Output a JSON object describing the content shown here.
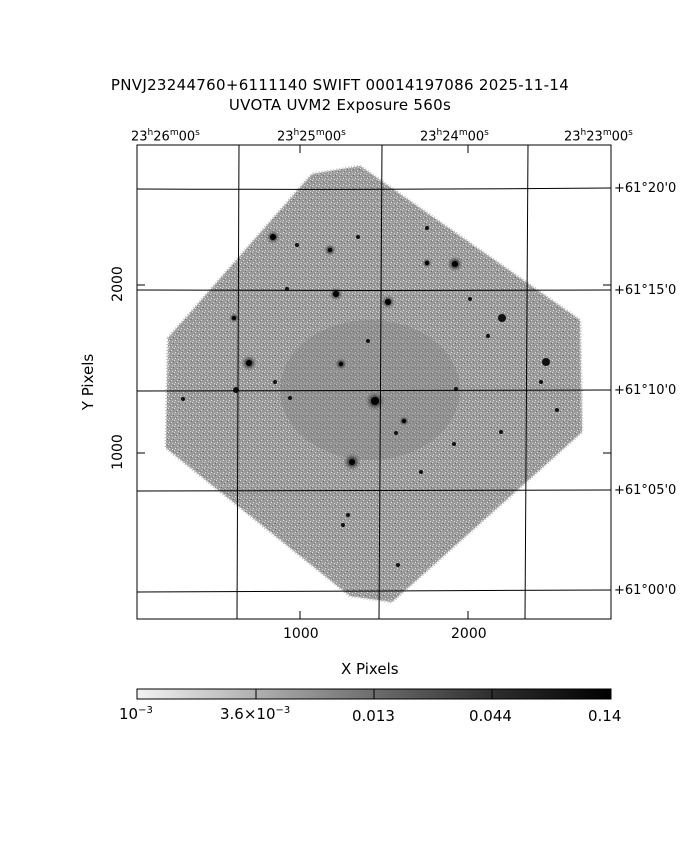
{
  "title": {
    "line1": "PNVJ23244760+6111140 SWIFT 00014197086 2025-11-14",
    "line2": "UVOTA UVM2 Exposure        560s"
  },
  "axes": {
    "x_label": "X Pixels",
    "y_label": "Y Pixels",
    "x_ticks": [
      "1000",
      "2000"
    ],
    "y_ticks": [
      "2000",
      "1000"
    ],
    "ra_ticks": [
      {
        "h": "23",
        "m": "26",
        "s": "00"
      },
      {
        "h": "23",
        "m": "25",
        "s": "00"
      },
      {
        "h": "23",
        "m": "24",
        "s": "00"
      },
      {
        "h": "23",
        "m": "23",
        "s": "00"
      }
    ],
    "dec_ticks": [
      "+61°20'0",
      "+61°15'0",
      "+61°10'0",
      "+61°05'0",
      "+61°00'0"
    ]
  },
  "colorbar": {
    "labels": [
      "10",
      "3.6×10",
      "0.013",
      "0.044",
      "0.14"
    ],
    "exponents": [
      "−3",
      "−3",
      "",
      "",
      ""
    ]
  }
}
